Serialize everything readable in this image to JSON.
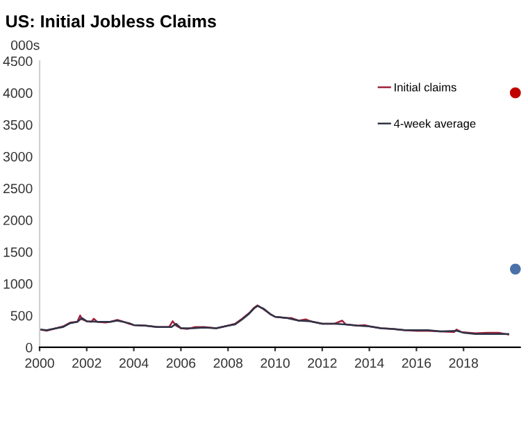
{
  "chart_data": {
    "type": "line",
    "title": "US: Initial Jobless Claims",
    "ylabel": "000s",
    "xlim": [
      2000,
      2020.4
    ],
    "xticks": [
      2000,
      2002,
      2004,
      2006,
      2008,
      2010,
      2012,
      2014,
      2016,
      2018
    ],
    "ylim": [
      0,
      4500
    ],
    "yticks": [
      0,
      500,
      1000,
      1500,
      2000,
      2500,
      3000,
      3500,
      4000,
      4500
    ],
    "grid": false,
    "legend": "top right",
    "series": [
      {
        "name": "Initial claims",
        "color": "#a0213a",
        "x": [
          2000.0,
          2000.3,
          2000.7,
          2001.0,
          2001.3,
          2001.6,
          2001.72,
          2001.8,
          2002.0,
          2002.2,
          2002.3,
          2002.45,
          2002.8,
          2003.0,
          2003.3,
          2003.5,
          2003.8,
          2004.0,
          2004.5,
          2005.0,
          2005.5,
          2005.65,
          2005.8,
          2006.0,
          2006.3,
          2006.6,
          2007.0,
          2007.5,
          2008.0,
          2008.3,
          2008.6,
          2008.9,
          2009.1,
          2009.25,
          2009.5,
          2009.8,
          2010.0,
          2010.5,
          2010.7,
          2011.0,
          2011.3,
          2011.5,
          2012.0,
          2012.5,
          2012.85,
          2013.0,
          2013.5,
          2013.8,
          2014.0,
          2014.5,
          2015.0,
          2015.5,
          2016.0,
          2016.5,
          2017.0,
          2017.6,
          2017.7,
          2017.9,
          2018.5,
          2019.0,
          2019.5,
          2019.9
        ],
        "values": [
          280,
          260,
          300,
          330,
          390,
          400,
          500,
          440,
          410,
          400,
          450,
          400,
          390,
          400,
          430,
          410,
          370,
          350,
          340,
          320,
          320,
          410,
          340,
          300,
          290,
          320,
          320,
          300,
          340,
          370,
          450,
          540,
          620,
          660,
          600,
          520,
          480,
          460,
          460,
          420,
          440,
          410,
          370,
          370,
          420,
          360,
          340,
          350,
          330,
          300,
          290,
          270,
          260,
          260,
          250,
          240,
          280,
          240,
          220,
          230,
          230,
          200
        ]
      },
      {
        "name": "4-week average",
        "color": "#2f3347",
        "x": [
          2000.0,
          2000.3,
          2000.7,
          2001.0,
          2001.3,
          2001.6,
          2001.8,
          2002.0,
          2002.5,
          2003.0,
          2003.3,
          2003.8,
          2004.0,
          2004.5,
          2005.0,
          2005.6,
          2005.8,
          2006.0,
          2006.5,
          2007.0,
          2007.5,
          2008.0,
          2008.3,
          2008.6,
          2008.9,
          2009.1,
          2009.25,
          2009.5,
          2009.8,
          2010.0,
          2010.5,
          2011.0,
          2011.5,
          2012.0,
          2012.5,
          2013.0,
          2013.5,
          2014.0,
          2014.5,
          2015.0,
          2015.5,
          2016.0,
          2016.5,
          2017.0,
          2017.7,
          2018.0,
          2018.5,
          2019.0,
          2019.5,
          2019.9
        ],
        "values": [
          280,
          270,
          300,
          320,
          380,
          400,
          460,
          410,
          400,
          400,
          420,
          380,
          350,
          340,
          320,
          320,
          370,
          300,
          300,
          310,
          300,
          340,
          360,
          440,
          530,
          610,
          650,
          610,
          520,
          480,
          460,
          420,
          410,
          370,
          370,
          360,
          340,
          330,
          300,
          290,
          270,
          270,
          270,
          250,
          260,
          230,
          210,
          210,
          210,
          210
        ]
      },
      {
        "type": "scatter",
        "color": "#c00000",
        "x": [
          2020.2
        ],
        "values": [
          4000
        ]
      },
      {
        "type": "scatter",
        "color": "#4a72a8",
        "x": [
          2020.2
        ],
        "values": [
          1230
        ]
      }
    ]
  }
}
